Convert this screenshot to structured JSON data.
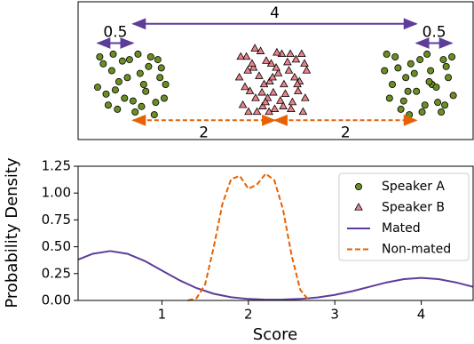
{
  "chart_data": [
    {
      "type": "scatter",
      "xlim": [
        -0.775,
        4.8
      ],
      "ylim": [
        0,
        1
      ],
      "series": [
        {
          "name": "Speaker A",
          "color": "#6b8e23",
          "marker": "circle",
          "x": [
            -0.5,
            -0.42,
            -0.35,
            -0.28,
            -0.2,
            -0.12,
            -0.05,
            0.03,
            0.1,
            0.18,
            0.25,
            0.32,
            0.4,
            0.46,
            -0.47,
            -0.38,
            -0.3,
            -0.22,
            -0.15,
            -0.08,
            0.0,
            0.07,
            0.15,
            0.22,
            0.3,
            0.38,
            0.44,
            -0.25,
            0.12,
            0.35,
            3.55,
            3.62,
            3.7,
            3.78,
            3.85,
            3.92,
            4.0,
            4.08,
            4.15,
            4.22,
            4.3,
            4.38,
            4.45,
            4.52,
            3.58,
            3.66,
            3.74,
            3.82,
            3.9,
            3.97,
            4.05,
            4.12,
            4.2,
            4.28,
            4.35,
            4.42,
            4.5,
            3.88,
            4.18,
            4.4
          ],
          "y": [
            0.38,
            0.55,
            0.25,
            0.62,
            0.42,
            0.3,
            0.58,
            0.2,
            0.48,
            0.35,
            0.6,
            0.27,
            0.52,
            0.4,
            0.6,
            0.33,
            0.5,
            0.22,
            0.57,
            0.45,
            0.28,
            0.62,
            0.4,
            0.53,
            0.18,
            0.45,
            0.3,
            0.36,
            0.24,
            0.58,
            0.5,
            0.3,
            0.6,
            0.22,
            0.45,
            0.55,
            0.35,
            0.2,
            0.62,
            0.4,
            0.27,
            0.58,
            0.45,
            0.32,
            0.62,
            0.4,
            0.52,
            0.28,
            0.18,
            0.48,
            0.58,
            0.25,
            0.5,
            0.38,
            0.2,
            0.53,
            0.6,
            0.35,
            0.42,
            0.25
          ]
        },
        {
          "name": "Speaker B",
          "color": "#e8838a",
          "marker": "triangle",
          "x": [
            1.5,
            1.55,
            1.6,
            1.65,
            1.7,
            1.75,
            1.8,
            1.85,
            1.9,
            1.95,
            2.0,
            2.05,
            2.1,
            2.15,
            2.2,
            2.25,
            2.3,
            2.35,
            2.4,
            2.45,
            1.52,
            1.58,
            1.63,
            1.68,
            1.73,
            1.78,
            1.83,
            1.88,
            1.93,
            1.98,
            2.03,
            2.08,
            2.13,
            2.18,
            2.23,
            2.28,
            2.33,
            2.38,
            2.43,
            1.62,
            1.72,
            1.82,
            1.92,
            2.02,
            2.12,
            2.22,
            2.32,
            2.42,
            1.87,
            1.97
          ],
          "y": [
            0.45,
            0.25,
            0.6,
            0.35,
            0.52,
            0.2,
            0.64,
            0.4,
            0.3,
            0.55,
            0.22,
            0.48,
            0.62,
            0.33,
            0.5,
            0.27,
            0.58,
            0.42,
            0.2,
            0.5,
            0.6,
            0.38,
            0.2,
            0.55,
            0.3,
            0.46,
            0.24,
            0.57,
            0.42,
            0.34,
            0.63,
            0.28,
            0.4,
            0.56,
            0.22,
            0.45,
            0.35,
            0.62,
            0.3,
            0.5,
            0.66,
            0.34,
            0.2,
            0.52,
            0.24,
            0.62,
            0.4,
            0.55,
            0.27,
            0.45
          ]
        }
      ],
      "annotations": [
        {
          "label": "4",
          "x1": 0,
          "x2": 4,
          "y": 0.84,
          "color": "#5e3c99",
          "style": "solid"
        },
        {
          "label": "0.5",
          "x1": -0.5,
          "x2": 0,
          "y": 0.7,
          "color": "#5e3c99",
          "style": "solid"
        },
        {
          "label": "0.5",
          "x1": 4,
          "x2": 4.5,
          "y": 0.7,
          "color": "#5e3c99",
          "style": "solid"
        },
        {
          "label": "2",
          "x1": 0,
          "x2": 2,
          "y": 0.14,
          "color": "#e66101",
          "style": "dashed"
        },
        {
          "label": "2",
          "x1": 2,
          "x2": 4,
          "y": 0.14,
          "color": "#e66101",
          "style": "dashed"
        }
      ]
    },
    {
      "type": "line",
      "xlabel": "Score",
      "ylabel": "Probability Density",
      "xlim": [
        0.03,
        4.6
      ],
      "ylim": [
        0,
        1.25
      ],
      "xticks": [
        1,
        2,
        3,
        4
      ],
      "yticks": [
        {
          "value": 0,
          "label": "0.00"
        },
        {
          "value": 0.25,
          "label": "0.25"
        },
        {
          "value": 0.5,
          "label": "0.50"
        },
        {
          "value": 0.75,
          "label": "0.75"
        },
        {
          "value": 1,
          "label": "1.00"
        },
        {
          "value": 1.25,
          "label": "1.25"
        }
      ],
      "legend": "upper right",
      "series": [
        {
          "name": "Mated",
          "color": "#5e3c99",
          "style": "solid",
          "x": [
            0.03,
            0.2,
            0.4,
            0.6,
            0.8,
            1.0,
            1.2,
            1.4,
            1.6,
            1.8,
            2.0,
            2.2,
            2.4,
            2.6,
            2.8,
            3.0,
            3.2,
            3.4,
            3.6,
            3.8,
            4.0,
            4.2,
            4.4,
            4.6
          ],
          "values": [
            0.38,
            0.435,
            0.46,
            0.435,
            0.368,
            0.278,
            0.189,
            0.115,
            0.062,
            0.03,
            0.014,
            0.007,
            0.008,
            0.014,
            0.028,
            0.052,
            0.086,
            0.127,
            0.168,
            0.199,
            0.21,
            0.199,
            0.168,
            0.127
          ]
        },
        {
          "name": "Non-mated",
          "color": "#e66101",
          "style": "dashed",
          "x": [
            1.3,
            1.4,
            1.5,
            1.6,
            1.7,
            1.8,
            1.9,
            2.0,
            2.1,
            2.2,
            2.3,
            2.4,
            2.5,
            2.6,
            2.7
          ],
          "values": [
            0,
            0.02,
            0.15,
            0.5,
            0.9,
            1.13,
            1.16,
            1.04,
            1.08,
            1.18,
            1.12,
            0.85,
            0.42,
            0.1,
            0
          ]
        }
      ]
    }
  ]
}
